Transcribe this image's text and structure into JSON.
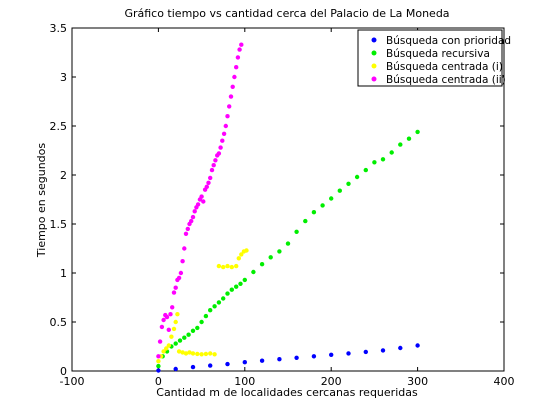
{
  "chart_data": {
    "type": "scatter",
    "title": "Gráfico tiempo vs cantidad cerca del Palacio de La Moneda",
    "xlabel": "Cantidad m de localidades cercanas requeridas",
    "ylabel": "Tiempo en segundos",
    "xlim": [
      -100,
      400
    ],
    "ylim": [
      0,
      3.5
    ],
    "xticks": [
      -100,
      0,
      100,
      200,
      300,
      400
    ],
    "yticks": [
      0,
      0.5,
      1,
      1.5,
      2,
      2.5,
      3,
      3.5
    ],
    "xtick_labels": [
      "-100",
      "0",
      "100",
      "200",
      "300",
      "400"
    ],
    "ytick_labels": [
      "0",
      "0.5",
      "1",
      "1.5",
      "2",
      "2.5",
      "3",
      "3.5"
    ],
    "grid": false,
    "legend_position": "top-right",
    "series": [
      {
        "name": "Búsqueda con prioridad",
        "color": "#0000ff",
        "points": [
          [
            0,
            0.005
          ],
          [
            20,
            0.02
          ],
          [
            40,
            0.04
          ],
          [
            60,
            0.055
          ],
          [
            80,
            0.07
          ],
          [
            100,
            0.09
          ],
          [
            120,
            0.105
          ],
          [
            140,
            0.12
          ],
          [
            160,
            0.135
          ],
          [
            180,
            0.15
          ],
          [
            200,
            0.165
          ],
          [
            220,
            0.18
          ],
          [
            240,
            0.195
          ],
          [
            260,
            0.21
          ],
          [
            280,
            0.235
          ],
          [
            300,
            0.26
          ]
        ]
      },
      {
        "name": "Búsqueda recursiva",
        "color": "#00ee00",
        "points": [
          [
            0,
            0.05
          ],
          [
            5,
            0.15
          ],
          [
            10,
            0.2
          ],
          [
            15,
            0.25
          ],
          [
            20,
            0.28
          ],
          [
            25,
            0.31
          ],
          [
            30,
            0.34
          ],
          [
            35,
            0.37
          ],
          [
            40,
            0.41
          ],
          [
            45,
            0.44
          ],
          [
            50,
            0.5
          ],
          [
            55,
            0.56
          ],
          [
            60,
            0.62
          ],
          [
            65,
            0.66
          ],
          [
            70,
            0.7
          ],
          [
            75,
            0.74
          ],
          [
            80,
            0.79
          ],
          [
            85,
            0.83
          ],
          [
            90,
            0.86
          ],
          [
            95,
            0.89
          ],
          [
            100,
            0.93
          ],
          [
            110,
            1.01
          ],
          [
            120,
            1.09
          ],
          [
            130,
            1.16
          ],
          [
            140,
            1.22
          ],
          [
            150,
            1.3
          ],
          [
            160,
            1.42
          ],
          [
            170,
            1.53
          ],
          [
            180,
            1.62
          ],
          [
            190,
            1.69
          ],
          [
            200,
            1.76
          ],
          [
            210,
            1.84
          ],
          [
            220,
            1.91
          ],
          [
            230,
            1.98
          ],
          [
            240,
            2.05
          ],
          [
            250,
            2.13
          ],
          [
            260,
            2.16
          ],
          [
            270,
            2.23
          ],
          [
            280,
            2.31
          ],
          [
            290,
            2.37
          ],
          [
            300,
            2.44
          ]
        ]
      },
      {
        "name": "Búsqueda centrada (i)",
        "color": "#ffff00",
        "points": [
          [
            0,
            0.1
          ],
          [
            3,
            0.15
          ],
          [
            6,
            0.2
          ],
          [
            9,
            0.23
          ],
          [
            12,
            0.26
          ],
          [
            15,
            0.35
          ],
          [
            18,
            0.43
          ],
          [
            20,
            0.5
          ],
          [
            22,
            0.58
          ],
          [
            24,
            0.2
          ],
          [
            28,
            0.19
          ],
          [
            32,
            0.18
          ],
          [
            36,
            0.19
          ],
          [
            40,
            0.18
          ],
          [
            45,
            0.175
          ],
          [
            50,
            0.17
          ],
          [
            55,
            0.175
          ],
          [
            60,
            0.18
          ],
          [
            65,
            0.17
          ],
          [
            70,
            1.07
          ],
          [
            75,
            1.06
          ],
          [
            80,
            1.07
          ],
          [
            85,
            1.06
          ],
          [
            90,
            1.07
          ],
          [
            93,
            1.15
          ],
          [
            96,
            1.19
          ],
          [
            99,
            1.22
          ],
          [
            102,
            1.23
          ]
        ]
      },
      {
        "name": "Búsqueda centrada (ii)",
        "color": "#ff00ff",
        "points": [
          [
            0,
            0.15
          ],
          [
            2,
            0.3
          ],
          [
            4,
            0.45
          ],
          [
            6,
            0.52
          ],
          [
            8,
            0.57
          ],
          [
            10,
            0.55
          ],
          [
            12,
            0.42
          ],
          [
            14,
            0.58
          ],
          [
            16,
            0.65
          ],
          [
            18,
            0.8
          ],
          [
            20,
            0.85
          ],
          [
            22,
            0.93
          ],
          [
            24,
            0.95
          ],
          [
            26,
            1.0
          ],
          [
            28,
            1.12
          ],
          [
            30,
            1.25
          ],
          [
            32,
            1.4
          ],
          [
            34,
            1.45
          ],
          [
            36,
            1.5
          ],
          [
            38,
            1.53
          ],
          [
            40,
            1.57
          ],
          [
            42,
            1.63
          ],
          [
            44,
            1.67
          ],
          [
            46,
            1.7
          ],
          [
            48,
            1.75
          ],
          [
            50,
            1.78
          ],
          [
            52,
            1.73
          ],
          [
            54,
            1.85
          ],
          [
            56,
            1.88
          ],
          [
            58,
            1.92
          ],
          [
            60,
            1.97
          ],
          [
            62,
            2.05
          ],
          [
            64,
            2.1
          ],
          [
            66,
            2.15
          ],
          [
            68,
            2.2
          ],
          [
            70,
            2.22
          ],
          [
            72,
            2.28
          ],
          [
            74,
            2.35
          ],
          [
            76,
            2.42
          ],
          [
            78,
            2.5
          ],
          [
            80,
            2.6
          ],
          [
            82,
            2.7
          ],
          [
            84,
            2.8
          ],
          [
            86,
            2.9
          ],
          [
            88,
            3.0
          ],
          [
            90,
            3.1
          ],
          [
            92,
            3.2
          ],
          [
            94,
            3.28
          ],
          [
            96,
            3.33
          ]
        ]
      }
    ]
  }
}
